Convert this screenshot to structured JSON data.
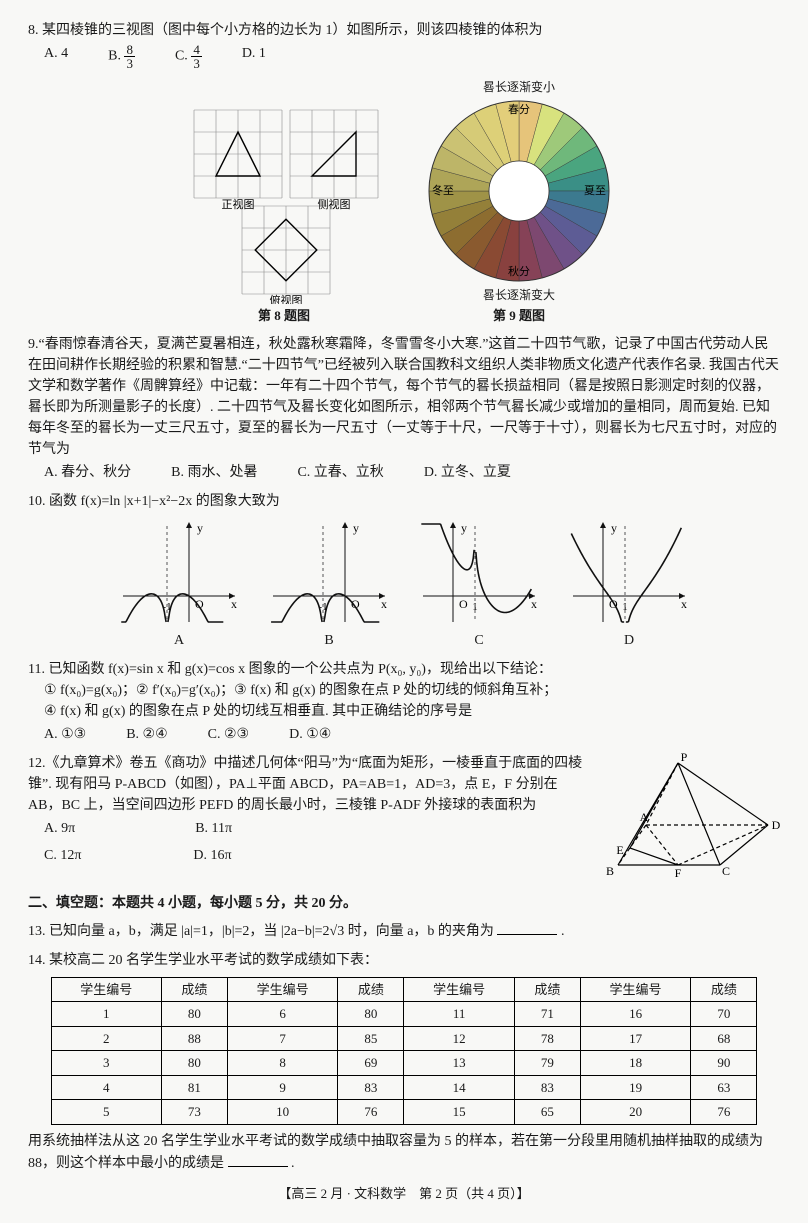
{
  "q8": {
    "stem": "8. 某四棱锥的三视图（图中每个小方格的边长为 1）如图所示，则该四棱锥的体积为",
    "A": "A. 4",
    "B_prefix": "B. ",
    "B_num": "8",
    "B_den": "3",
    "C_prefix": "C. ",
    "C_num": "4",
    "C_den": "3",
    "D": "D. 1",
    "grid": {
      "size": 4,
      "cell": 22,
      "stroke": "#8a8a8a"
    },
    "labels": {
      "front": "正视图",
      "side": "侧视图",
      "top": "俯视图"
    },
    "cap": "第 8 题图"
  },
  "q9": {
    "cap": "第 9 题图",
    "top_label": "晷长逐渐变小",
    "bottom_label": "晷长逐渐变大",
    "chart": {
      "r_outer": 90,
      "r_inner": 30,
      "slices": 24,
      "colors": [
        "#e6c47a",
        "#d8e27e",
        "#9ec97a",
        "#6fb87b",
        "#4aa57f",
        "#3a8f86",
        "#3c7a8f",
        "#4c6a97",
        "#5d5c95",
        "#6f5188",
        "#7d4870",
        "#864257",
        "#89413f",
        "#8a4a33",
        "#8a5a2f",
        "#8d6d30",
        "#948039",
        "#9f9347",
        "#aea558",
        "#bdb568",
        "#cbc273",
        "#d6cb77",
        "#ddd078",
        "#e3ce7a"
      ],
      "terms_axes": {
        "top": "春分",
        "right": "夏至",
        "bottom": "秋分",
        "left": "冬至"
      }
    },
    "stem1": "9.“春雨惊春清谷天，夏满芒夏暑相连，秋处露秋寒霜降，冬雪雪冬小大寒.”这首二十四节气歌，记录了中国古代劳动人民在田间耕作长期经验的积累和智慧.“二十四节气”已经被列入联合国教科文组织人类非物质文化遗产代表作名录. 我国古代天文学和数学著作《周髀算经》中记载：一年有二十四个节气，每个节气的晷长损益相同（晷是按照日影测定时刻的仪器，晷长即为所测量影子的长度）. 二十四节气及晷长变化如图所示，相邻两个节气晷长减少或增加的量相同，周而复始. 已知每年冬至的晷长为一丈三尺五寸，夏至的晷长为一尺五寸（一丈等于十尺，一尺等于十寸），则晷长为七尺五寸时，对应的节气为",
    "A": "A. 春分、秋分",
    "B": "B. 雨水、处暑",
    "C": "C. 立春、立秋",
    "D": "D. 立冬、立夏"
  },
  "q10": {
    "stem": "10. 函数 f(x)=ln |x+1|−x²−2x 的图象大致为",
    "labels": {
      "A": "A",
      "B": "B",
      "C": "C",
      "D": "D"
    },
    "plot": {
      "w": 120,
      "h": 110,
      "stroke": "#111",
      "axis": "#111",
      "curve_color": "#111",
      "curve_width": 1.6
    }
  },
  "q11": {
    "stem": "11. 已知函数 f(x)=sin x 和 g(x)=cos x 图象的一个公共点为 P(x₀, y₀)，现给出以下结论：",
    "l1": "① f(x₀)=g(x₀)；② f′(x₀)=g′(x₀)；③ f(x) 和 g(x) 的图象在点 P 处的切线的倾斜角互补；",
    "l2": "④ f(x) 和 g(x) 的图象在点 P 处的切线互相垂直. 其中正确结论的序号是",
    "A": "A. ①③",
    "B": "B. ②④",
    "C": "C. ②③",
    "D": "D. ①④"
  },
  "q12": {
    "stem": "12.《九章算术》卷五《商功》中描述几何体“阳马”为“底面为矩形，一棱垂直于底面的四棱锥”. 现有阳马 P-ABCD（如图），PA⊥平面 ABCD，PA=AB=1，AD=3，点 E，F 分别在 AB，BC 上，当空间四边形 PEFD 的周长最小时，三棱锥 P-ADF 外接球的表面积为",
    "A": "A. 9π",
    "B": "B. 11π",
    "C": "C. 12π",
    "D": "D. 16π",
    "fig_labels": {
      "P": "P",
      "A": "A",
      "B": "B",
      "C": "C",
      "D": "D",
      "E": "E",
      "F": "F"
    }
  },
  "sec2": "二、填空题：本题共 4 小题，每小题 5 分，共 20 分。",
  "q13": {
    "stem_pre": "13. 已知向量 a，b，满足 |a|=1，|b|=2，当 |2a−b|=2√3 时，向量 a，b 的夹角为",
    "stem_post": "."
  },
  "q14": {
    "stem": "14. 某校高二 20 名学生学业水平考试的数学成绩如下表：",
    "headers": [
      "学生编号",
      "成绩",
      "学生编号",
      "成绩",
      "学生编号",
      "成绩",
      "学生编号",
      "成绩"
    ],
    "rows": [
      [
        "1",
        "80",
        "6",
        "80",
        "11",
        "71",
        "16",
        "70"
      ],
      [
        "2",
        "88",
        "7",
        "85",
        "12",
        "78",
        "17",
        "68"
      ],
      [
        "3",
        "80",
        "8",
        "69",
        "13",
        "79",
        "18",
        "90"
      ],
      [
        "4",
        "81",
        "9",
        "83",
        "14",
        "83",
        "19",
        "63"
      ],
      [
        "5",
        "73",
        "10",
        "76",
        "15",
        "65",
        "20",
        "76"
      ]
    ],
    "tail_pre": "用系统抽样法从这 20 名学生学业水平考试的数学成绩中抽取容量为 5 的样本，若在第一分段里用随机抽样抽取的成绩为 88，则这个样本中最小的成绩是",
    "tail_post": "."
  },
  "footer": "【高三 2 月 · 文科数学　第 2 页（共 4 页）】"
}
